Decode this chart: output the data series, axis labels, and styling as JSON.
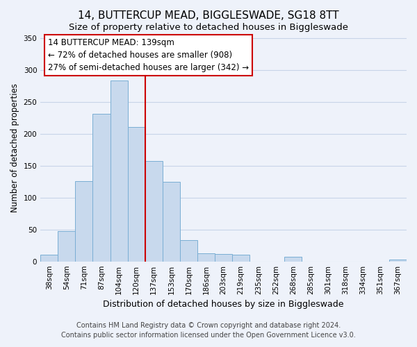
{
  "title": "14, BUTTERCUP MEAD, BIGGLESWADE, SG18 8TT",
  "subtitle": "Size of property relative to detached houses in Biggleswade",
  "xlabel": "Distribution of detached houses by size in Biggleswade",
  "ylabel": "Number of detached properties",
  "bar_labels": [
    "38sqm",
    "54sqm",
    "71sqm",
    "87sqm",
    "104sqm",
    "120sqm",
    "137sqm",
    "153sqm",
    "170sqm",
    "186sqm",
    "203sqm",
    "219sqm",
    "235sqm",
    "252sqm",
    "268sqm",
    "285sqm",
    "301sqm",
    "318sqm",
    "334sqm",
    "351sqm",
    "367sqm"
  ],
  "bar_heights": [
    11,
    47,
    126,
    231,
    283,
    211,
    157,
    125,
    33,
    13,
    12,
    10,
    0,
    0,
    7,
    0,
    0,
    0,
    0,
    0,
    3
  ],
  "bar_color": "#c8d9ed",
  "bar_edge_color": "#7aaed4",
  "vline_color": "#cc0000",
  "vline_index": 6,
  "ylim": [
    0,
    355
  ],
  "yticks": [
    0,
    50,
    100,
    150,
    200,
    250,
    300,
    350
  ],
  "annotation_title": "14 BUTTERCUP MEAD: 139sqm",
  "annotation_line1": "← 72% of detached houses are smaller (908)",
  "annotation_line2": "27% of semi-detached houses are larger (342) →",
  "footer1": "Contains HM Land Registry data © Crown copyright and database right 2024.",
  "footer2": "Contains public sector information licensed under the Open Government Licence v3.0.",
  "background_color": "#eef2fa",
  "box_bg": "#ffffff",
  "box_edge": "#cc0000",
  "grid_color": "#c8d4e8",
  "title_fontsize": 11,
  "subtitle_fontsize": 9.5,
  "xlabel_fontsize": 9,
  "ylabel_fontsize": 8.5,
  "tick_fontsize": 7.5,
  "annotation_fontsize": 8.5,
  "footer_fontsize": 7
}
